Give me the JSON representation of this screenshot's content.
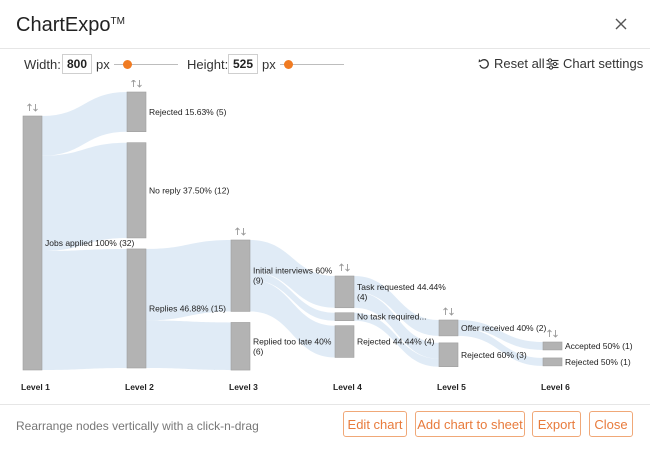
{
  "dialog": {
    "app_name": "ChartExpo",
    "trademark": "TM"
  },
  "controls": {
    "width_label": "Width:",
    "width_value": "800",
    "width_unit": "px",
    "height_label": "Height:",
    "height_value": "525",
    "height_unit": "px",
    "reset_label": "Reset all",
    "settings_label": "Chart settings"
  },
  "chart_data": {
    "type": "sankey",
    "levels": [
      "Level 1",
      "Level 2",
      "Level 3",
      "Level 4",
      "Level 5",
      "Level 6"
    ],
    "nodes": [
      {
        "id": "jobs",
        "level": 1,
        "label": "Jobs applied 100% (32)",
        "value": 32
      },
      {
        "id": "rej2",
        "level": 2,
        "label": "Rejected 15.63% (5)",
        "value": 5
      },
      {
        "id": "noreply2",
        "level": 2,
        "label": "No reply 37.50% (12)",
        "value": 12
      },
      {
        "id": "replies2",
        "level": 2,
        "label": "Replies 46.88% (15)",
        "value": 15
      },
      {
        "id": "initial3",
        "level": 3,
        "label": [
          "Initial interviews 60%",
          "(9)"
        ],
        "value": 9
      },
      {
        "id": "late3",
        "level": 3,
        "label": [
          "Replied too late 40%",
          "(6)"
        ],
        "value": 6
      },
      {
        "id": "task4",
        "level": 4,
        "label": [
          "Task requested 44.44%",
          "(4)"
        ],
        "value": 4
      },
      {
        "id": "notask4",
        "level": 4,
        "label": "No task required...",
        "value": 1
      },
      {
        "id": "rej4",
        "level": 4,
        "label": "Rejected 44.44% (4)",
        "value": 4
      },
      {
        "id": "offer5",
        "level": 5,
        "label": "Offer received 40% (2)",
        "value": 2
      },
      {
        "id": "rej5",
        "level": 5,
        "label": "Rejected 60% (3)",
        "value": 3
      },
      {
        "id": "acc6",
        "level": 6,
        "label": "Accepted 50% (1)",
        "value": 1
      },
      {
        "id": "rej6",
        "level": 6,
        "label": "Rejected 50% (1)",
        "value": 1
      }
    ],
    "links": [
      {
        "source": "jobs",
        "target": "rej2",
        "value": 5
      },
      {
        "source": "jobs",
        "target": "noreply2",
        "value": 12
      },
      {
        "source": "jobs",
        "target": "replies2",
        "value": 15
      },
      {
        "source": "replies2",
        "target": "initial3",
        "value": 9
      },
      {
        "source": "replies2",
        "target": "late3",
        "value": 6
      },
      {
        "source": "initial3",
        "target": "task4",
        "value": 4
      },
      {
        "source": "initial3",
        "target": "notask4",
        "value": 1
      },
      {
        "source": "initial3",
        "target": "rej4",
        "value": 4
      },
      {
        "source": "task4",
        "target": "offer5",
        "value": 2
      },
      {
        "source": "task4",
        "target": "rej5",
        "value": 2
      },
      {
        "source": "notask4",
        "target": "rej5",
        "value": 1
      },
      {
        "source": "offer5",
        "target": "acc6",
        "value": 1
      },
      {
        "source": "offer5",
        "target": "rej6",
        "value": 1
      }
    ],
    "colors": {
      "node": "#b3b3b3",
      "link": "#dbe7f5"
    }
  },
  "footer": {
    "hint": "Rearrange nodes vertically with a click-n-drag",
    "edit_label": "Edit chart",
    "add_label": "Add chart to sheet",
    "export_label": "Export",
    "close_label": "Close"
  },
  "colors": {
    "accent": "#f07b22",
    "button_text": "#e87b3c",
    "button_border": "#f0a878"
  }
}
